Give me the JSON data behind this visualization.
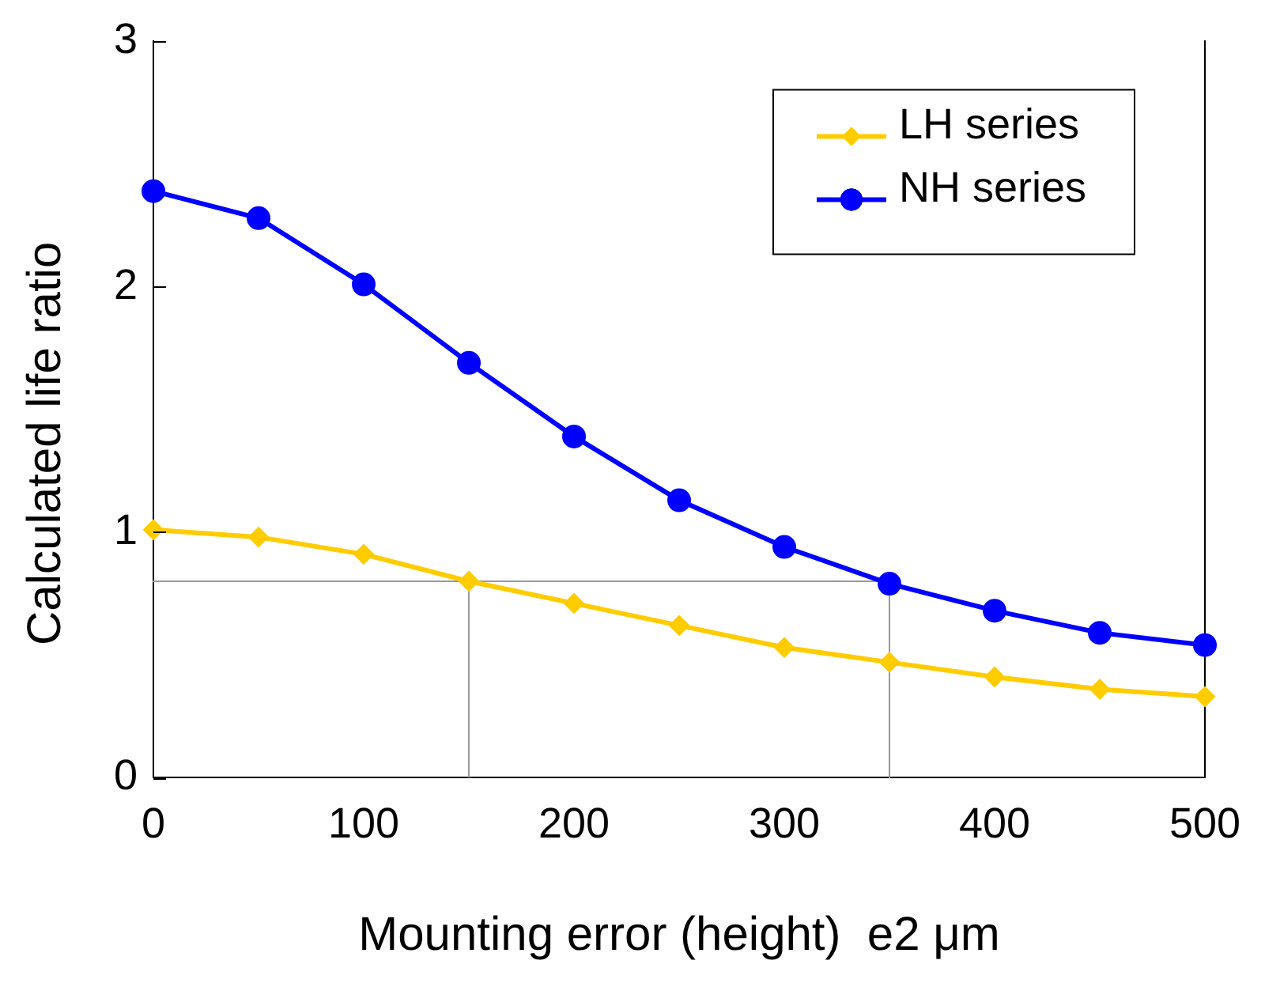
{
  "chart_data": {
    "type": "line",
    "xlabel": "Mounting error (height)  e2 μm",
    "ylabel": "Calculated life ratio",
    "x": [
      0,
      50,
      100,
      150,
      200,
      250,
      300,
      350,
      400,
      450,
      500
    ],
    "xlim": [
      0,
      500
    ],
    "xticks": [
      0,
      100,
      200,
      300,
      400,
      500
    ],
    "ylim": [
      0,
      3
    ],
    "yticks": [
      0,
      1,
      2,
      3
    ],
    "grid": false,
    "legend": "top right",
    "line_style": "solid",
    "series": [
      {
        "name": "LH series",
        "color": "#ffcc00",
        "marker": "diamond",
        "values": [
          1.01,
          0.98,
          0.91,
          0.8,
          0.71,
          0.62,
          0.53,
          0.47,
          0.41,
          0.36,
          0.33
        ]
      },
      {
        "name": "NH series",
        "color": "#0000ff",
        "marker": "circle",
        "values": [
          2.39,
          2.28,
          2.01,
          1.69,
          1.39,
          1.13,
          0.94,
          0.79,
          0.68,
          0.59,
          0.54
        ]
      },
      {
        "type": "line",
        "color": "#999999",
        "marker": "none",
        "x": [
          150,
          150,
          0,
          350,
          350
        ],
        "values": [
          0,
          0.8,
          0.8,
          0.8,
          0
        ]
      }
    ]
  }
}
